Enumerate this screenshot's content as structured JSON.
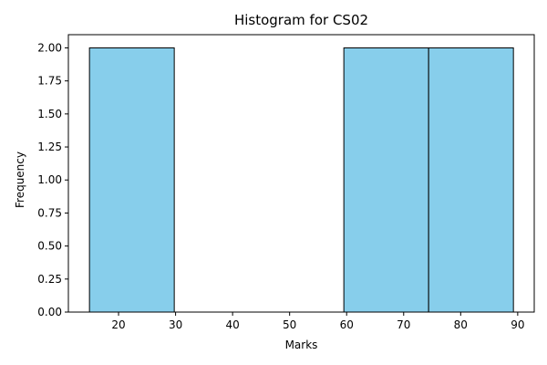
{
  "chart_data": {
    "type": "bar",
    "title": "Histogram for CS02",
    "xlabel": "Marks",
    "ylabel": "Frequency",
    "bin_edges": [
      14.9,
      29.77,
      44.64,
      59.51,
      74.38,
      89.25
    ],
    "values": [
      2,
      0,
      0,
      2,
      2
    ],
    "xlim": [
      11.2,
      92.9
    ],
    "ylim": [
      0,
      2.1
    ],
    "xticks": [
      20,
      30,
      40,
      50,
      60,
      70,
      80,
      90
    ],
    "yticks": [
      0,
      0.25,
      0.5,
      0.75,
      1.0,
      1.25,
      1.5,
      1.75,
      2.0
    ],
    "xtick_labels": [
      "20",
      "30",
      "40",
      "50",
      "60",
      "70",
      "80",
      "90"
    ],
    "ytick_labels": [
      "0.00",
      "0.25",
      "0.50",
      "0.75",
      "1.00",
      "1.25",
      "1.50",
      "1.75",
      "2.00"
    ],
    "bar_color": "#87CEEB",
    "edge_color": "#000000",
    "grid": false,
    "legend": "none"
  }
}
